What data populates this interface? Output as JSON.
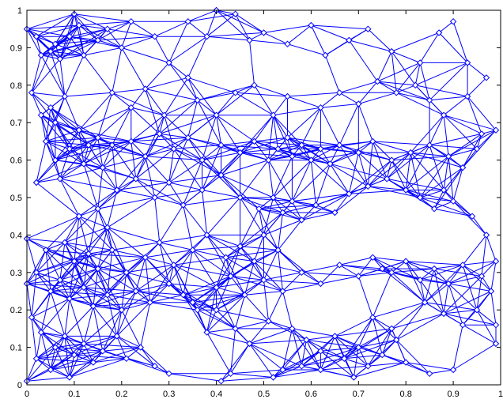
{
  "chart_data": {
    "type": "scatter",
    "title": "",
    "xlabel": "",
    "ylabel": "",
    "xlim": [
      0,
      1
    ],
    "ylim": [
      0,
      1
    ],
    "x_ticks": [
      "0",
      "0.1",
      "0.2",
      "0.3",
      "0.4",
      "0.5",
      "0.6",
      "0.7",
      "0.8",
      "0.9",
      "1"
    ],
    "y_ticks": [
      "0",
      "0.1",
      "0.2",
      "0.3",
      "0.4",
      "0.5",
      "0.6",
      "0.7",
      "0.8",
      "0.9",
      "1"
    ],
    "grid": false,
    "marker": "diamond",
    "connected": true,
    "color": "#0000ff",
    "connection_radius": 0.13,
    "nodes": [
      [
        0.0,
        0.95
      ],
      [
        0.02,
        0.93
      ],
      [
        0.03,
        0.88
      ],
      [
        0.05,
        0.89
      ],
      [
        0.06,
        0.91
      ],
      [
        0.07,
        0.87
      ],
      [
        0.1,
        0.99
      ],
      [
        0.11,
        0.96
      ],
      [
        0.09,
        0.93
      ],
      [
        0.12,
        0.88
      ],
      [
        0.15,
        0.92
      ],
      [
        0.17,
        0.95
      ],
      [
        0.2,
        0.9
      ],
      [
        0.22,
        0.97
      ],
      [
        0.27,
        0.93
      ],
      [
        0.3,
        0.86
      ],
      [
        0.34,
        0.97
      ],
      [
        0.38,
        0.93
      ],
      [
        0.4,
        1.0
      ],
      [
        0.44,
        0.99
      ],
      [
        0.47,
        0.92
      ],
      [
        0.5,
        0.94
      ],
      [
        0.55,
        0.91
      ],
      [
        0.6,
        0.96
      ],
      [
        0.63,
        0.88
      ],
      [
        0.68,
        0.92
      ],
      [
        0.72,
        0.95
      ],
      [
        0.77,
        0.89
      ],
      [
        0.83,
        0.86
      ],
      [
        0.87,
        0.94
      ],
      [
        0.9,
        0.97
      ],
      [
        0.93,
        0.86
      ],
      [
        0.01,
        0.78
      ],
      [
        0.03,
        0.72
      ],
      [
        0.05,
        0.74
      ],
      [
        0.06,
        0.7
      ],
      [
        0.08,
        0.77
      ],
      [
        0.04,
        0.65
      ],
      [
        0.06,
        0.6
      ],
      [
        0.09,
        0.63
      ],
      [
        0.11,
        0.68
      ],
      [
        0.13,
        0.64
      ],
      [
        0.15,
        0.66
      ],
      [
        0.18,
        0.64
      ],
      [
        0.12,
        0.59
      ],
      [
        0.16,
        0.58
      ],
      [
        0.02,
        0.54
      ],
      [
        0.07,
        0.55
      ],
      [
        0.18,
        0.78
      ],
      [
        0.22,
        0.74
      ],
      [
        0.25,
        0.79
      ],
      [
        0.29,
        0.72
      ],
      [
        0.34,
        0.82
      ],
      [
        0.36,
        0.76
      ],
      [
        0.4,
        0.72
      ],
      [
        0.44,
        0.78
      ],
      [
        0.48,
        0.8
      ],
      [
        0.52,
        0.72
      ],
      [
        0.55,
        0.77
      ],
      [
        0.62,
        0.74
      ],
      [
        0.66,
        0.78
      ],
      [
        0.7,
        0.75
      ],
      [
        0.74,
        0.81
      ],
      [
        0.78,
        0.78
      ],
      [
        0.82,
        0.8
      ],
      [
        0.85,
        0.76
      ],
      [
        0.88,
        0.72
      ],
      [
        0.93,
        0.77
      ],
      [
        0.96,
        0.67
      ],
      [
        0.99,
        0.68
      ],
      [
        0.97,
        0.82
      ],
      [
        0.22,
        0.65
      ],
      [
        0.25,
        0.61
      ],
      [
        0.28,
        0.67
      ],
      [
        0.31,
        0.63
      ],
      [
        0.34,
        0.66
      ],
      [
        0.37,
        0.6
      ],
      [
        0.41,
        0.64
      ],
      [
        0.45,
        0.62
      ],
      [
        0.48,
        0.65
      ],
      [
        0.51,
        0.6
      ],
      [
        0.53,
        0.63
      ],
      [
        0.55,
        0.66
      ],
      [
        0.56,
        0.61
      ],
      [
        0.58,
        0.64
      ],
      [
        0.6,
        0.6
      ],
      [
        0.62,
        0.63
      ],
      [
        0.64,
        0.59
      ],
      [
        0.66,
        0.64
      ],
      [
        0.7,
        0.62
      ],
      [
        0.73,
        0.65
      ],
      [
        0.77,
        0.6
      ],
      [
        0.81,
        0.62
      ],
      [
        0.85,
        0.64
      ],
      [
        0.89,
        0.61
      ],
      [
        0.92,
        0.58
      ],
      [
        0.95,
        0.63
      ],
      [
        0.19,
        0.52
      ],
      [
        0.23,
        0.55
      ],
      [
        0.27,
        0.5
      ],
      [
        0.3,
        0.54
      ],
      [
        0.33,
        0.48
      ],
      [
        0.37,
        0.52
      ],
      [
        0.41,
        0.56
      ],
      [
        0.45,
        0.5
      ],
      [
        0.49,
        0.47
      ],
      [
        0.52,
        0.5
      ],
      [
        0.54,
        0.46
      ],
      [
        0.56,
        0.49
      ],
      [
        0.58,
        0.44
      ],
      [
        0.61,
        0.48
      ],
      [
        0.65,
        0.46
      ],
      [
        0.68,
        0.51
      ],
      [
        0.72,
        0.53
      ],
      [
        0.76,
        0.55
      ],
      [
        0.8,
        0.52
      ],
      [
        0.83,
        0.5
      ],
      [
        0.86,
        0.47
      ],
      [
        0.88,
        0.52
      ],
      [
        0.9,
        0.49
      ],
      [
        0.94,
        0.45
      ],
      [
        0.11,
        0.45
      ],
      [
        0.15,
        0.47
      ],
      [
        0.17,
        0.42
      ],
      [
        0.0,
        0.39
      ],
      [
        0.04,
        0.36
      ],
      [
        0.08,
        0.38
      ],
      [
        0.1,
        0.33
      ],
      [
        0.13,
        0.35
      ],
      [
        0.15,
        0.31
      ],
      [
        0.18,
        0.36
      ],
      [
        0.21,
        0.3
      ],
      [
        0.25,
        0.34
      ],
      [
        0.28,
        0.38
      ],
      [
        0.31,
        0.32
      ],
      [
        0.35,
        0.36
      ],
      [
        0.38,
        0.4
      ],
      [
        0.42,
        0.34
      ],
      [
        0.45,
        0.37
      ],
      [
        0.48,
        0.33
      ],
      [
        0.5,
        0.4
      ],
      [
        0.53,
        0.36
      ],
      [
        0.0,
        0.27
      ],
      [
        0.02,
        0.3
      ],
      [
        0.05,
        0.25
      ],
      [
        0.07,
        0.28
      ],
      [
        0.09,
        0.23
      ],
      [
        0.12,
        0.26
      ],
      [
        0.14,
        0.21
      ],
      [
        0.17,
        0.24
      ],
      [
        0.2,
        0.2
      ],
      [
        0.23,
        0.25
      ],
      [
        0.26,
        0.22
      ],
      [
        0.3,
        0.27
      ],
      [
        0.33,
        0.24
      ],
      [
        0.36,
        0.2
      ],
      [
        0.4,
        0.26
      ],
      [
        0.43,
        0.29
      ],
      [
        0.46,
        0.24
      ],
      [
        0.5,
        0.28
      ],
      [
        0.54,
        0.25
      ],
      [
        0.58,
        0.3
      ],
      [
        0.62,
        0.27
      ],
      [
        0.66,
        0.32
      ],
      [
        0.7,
        0.29
      ],
      [
        0.73,
        0.34
      ],
      [
        0.75,
        0.31
      ],
      [
        0.77,
        0.3
      ],
      [
        0.8,
        0.33
      ],
      [
        0.83,
        0.28
      ],
      [
        0.86,
        0.31
      ],
      [
        0.89,
        0.27
      ],
      [
        0.92,
        0.32
      ],
      [
        0.96,
        0.29
      ],
      [
        0.99,
        0.33
      ],
      [
        0.98,
        0.25
      ],
      [
        0.97,
        0.4
      ],
      [
        0.01,
        0.18
      ],
      [
        0.03,
        0.14
      ],
      [
        0.06,
        0.1
      ],
      [
        0.08,
        0.13
      ],
      [
        0.1,
        0.08
      ],
      [
        0.12,
        0.11
      ],
      [
        0.14,
        0.06
      ],
      [
        0.16,
        0.09
      ],
      [
        0.19,
        0.13
      ],
      [
        0.21,
        0.07
      ],
      [
        0.24,
        0.1
      ],
      [
        0.27,
        0.05
      ],
      [
        0.3,
        0.03
      ],
      [
        0.02,
        0.07
      ],
      [
        0.05,
        0.04
      ],
      [
        0.09,
        0.02
      ],
      [
        0.0,
        0.01
      ],
      [
        0.56,
        0.15
      ],
      [
        0.59,
        0.12
      ],
      [
        0.62,
        0.09
      ],
      [
        0.65,
        0.13
      ],
      [
        0.67,
        0.07
      ],
      [
        0.7,
        0.1
      ],
      [
        0.72,
        0.05
      ],
      [
        0.75,
        0.08
      ],
      [
        0.78,
        0.12
      ],
      [
        0.8,
        0.06
      ],
      [
        0.62,
        0.04
      ],
      [
        0.58,
        0.05
      ],
      [
        0.54,
        0.04
      ],
      [
        0.52,
        0.02
      ],
      [
        0.69,
        0.02
      ],
      [
        0.73,
        0.18
      ],
      [
        0.77,
        0.15
      ],
      [
        0.84,
        0.22
      ],
      [
        0.88,
        0.19
      ],
      [
        0.92,
        0.16
      ],
      [
        0.95,
        0.2
      ],
      [
        0.99,
        0.16
      ],
      [
        0.99,
        0.11
      ],
      [
        0.85,
        0.03
      ],
      [
        0.9,
        0.04
      ],
      [
        0.38,
        0.14
      ],
      [
        0.44,
        0.15
      ],
      [
        0.47,
        0.11
      ],
      [
        0.51,
        0.17
      ],
      [
        0.35,
        0.22
      ],
      [
        0.4,
        0.2
      ],
      [
        0.43,
        0.03
      ],
      [
        0.41,
        0.01
      ]
    ]
  }
}
